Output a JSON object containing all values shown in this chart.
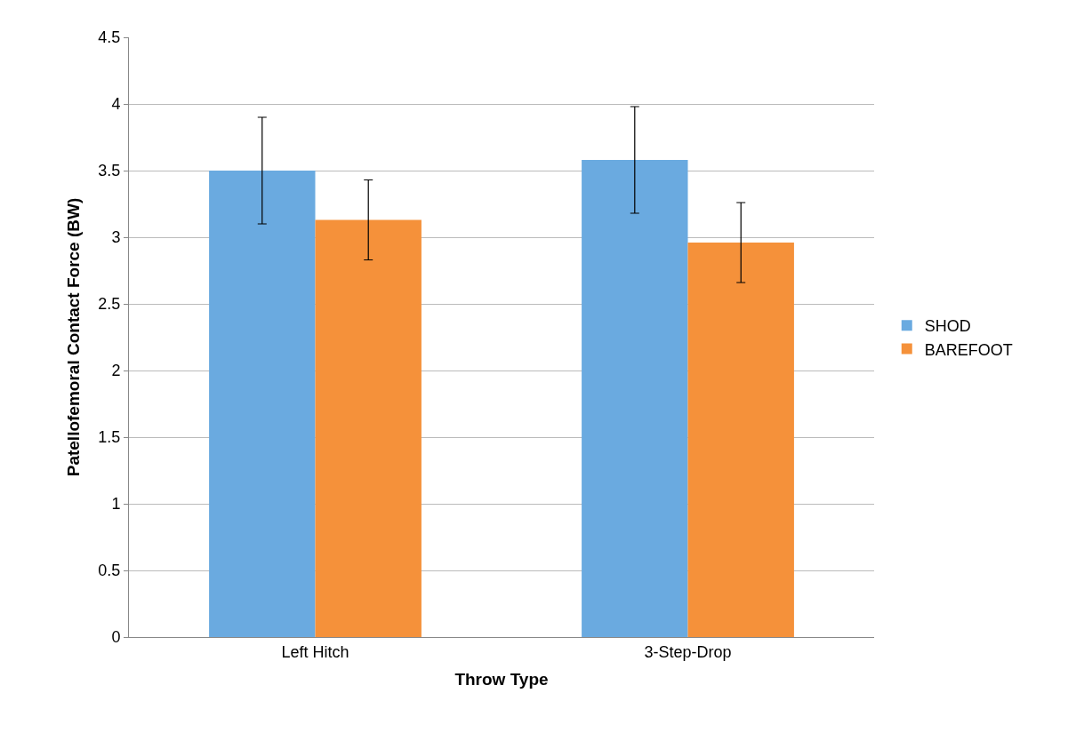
{
  "chart_data": {
    "type": "bar",
    "xlabel": "Throw Type",
    "ylabel": "Patellofemoral Contact Force (BW)",
    "categories": [
      "Left Hitch",
      "3-Step-Drop"
    ],
    "series": [
      {
        "name": "SHOD",
        "color": "#6aaae0",
        "values": [
          3.5,
          3.58
        ],
        "errors": [
          0.4,
          0.4
        ]
      },
      {
        "name": "BAREFOOT",
        "color": "#f5913a",
        "values": [
          3.13,
          2.96
        ],
        "errors": [
          0.3,
          0.3
        ]
      }
    ],
    "ylim": [
      0,
      4.5
    ],
    "yticks": [
      0,
      0.5,
      1,
      1.5,
      2,
      2.5,
      3,
      3.5,
      4,
      4.5
    ],
    "grid": "y",
    "legend": "right"
  }
}
